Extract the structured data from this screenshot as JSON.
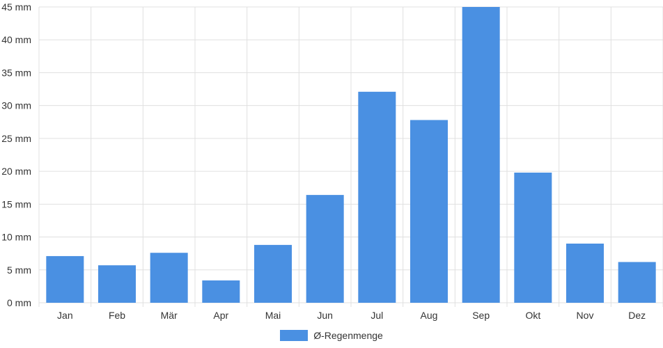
{
  "chart_data": {
    "type": "bar",
    "categories": [
      "Jan",
      "Feb",
      "Mär",
      "Apr",
      "Mai",
      "Jun",
      "Jul",
      "Aug",
      "Sep",
      "Okt",
      "Nov",
      "Dez"
    ],
    "series": [
      {
        "name": "Ø-Regenmenge",
        "values": [
          7.1,
          5.7,
          7.6,
          3.4,
          8.8,
          16.4,
          32.1,
          27.8,
          45.0,
          19.8,
          9.0,
          6.2
        ]
      }
    ],
    "ylim": [
      0,
      45
    ],
    "yticks": [
      0,
      5,
      10,
      15,
      20,
      25,
      30,
      35,
      40,
      45
    ],
    "ytick_labels": [
      "0 mm",
      "5 mm",
      "10 mm",
      "15 mm",
      "20 mm",
      "25 mm",
      "30 mm",
      "35 mm",
      "40 mm",
      "45 mm"
    ],
    "grid": true,
    "legend_position": "bottom",
    "colors": {
      "bar": "#4a90e2",
      "grid": "#e0e0e0",
      "text": "#333333"
    }
  }
}
